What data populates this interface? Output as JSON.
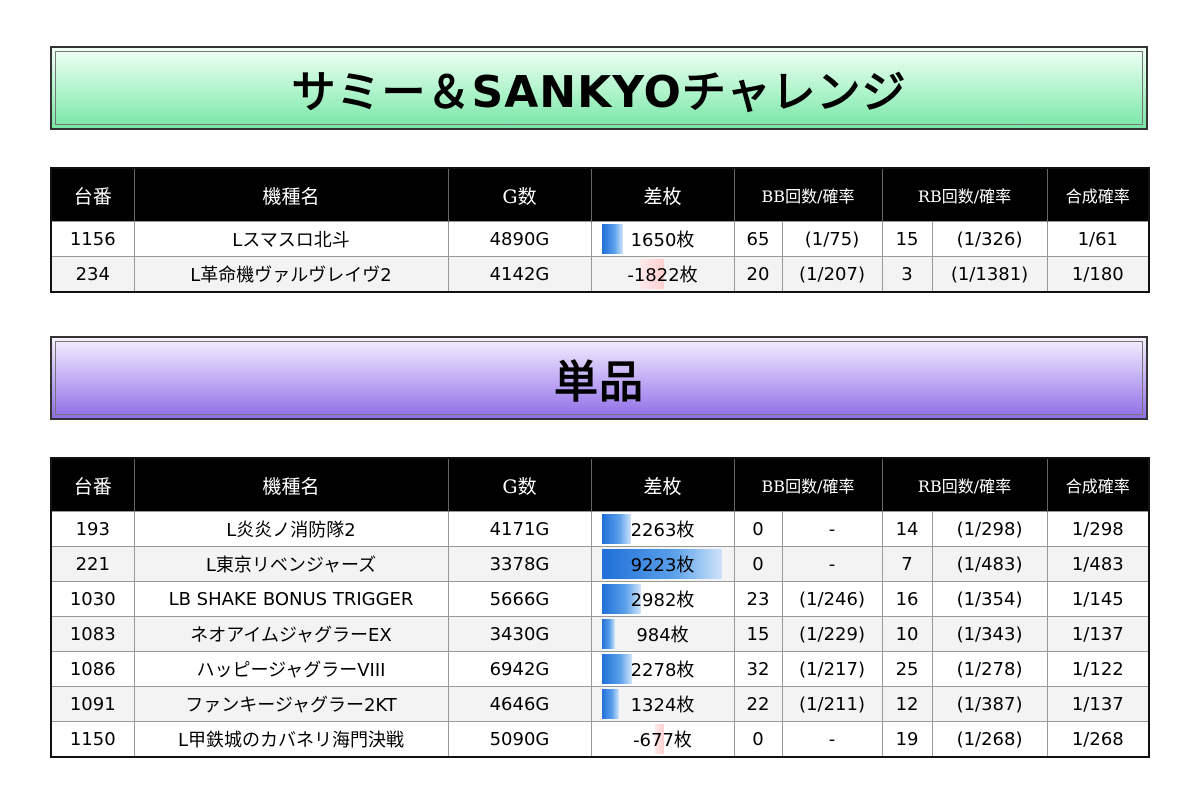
{
  "sections": [
    {
      "title": "サミー＆SANKYOチャレンジ",
      "rows": [
        {
          "number": "1156",
          "machine": "Lスマスロ北斗",
          "games": "4890G",
          "diff": "1650枚",
          "diff_value": 1650,
          "bb": "65",
          "bb_rate": "(1/75)",
          "rb": "15",
          "rb_rate": "(1/326)",
          "combined": "1/61"
        },
        {
          "number": "234",
          "machine": "L革命機ヴァルヴレイヴ2",
          "games": "4142G",
          "diff": "-1822枚",
          "diff_value": -1822,
          "bb": "20",
          "bb_rate": "(1/207)",
          "rb": "3",
          "rb_rate": "(1/1381)",
          "combined": "1/180"
        }
      ]
    },
    {
      "title": "単品",
      "rows": [
        {
          "number": "193",
          "machine": "L炎炎ノ消防隊2",
          "games": "4171G",
          "diff": "2263枚",
          "diff_value": 2263,
          "bb": "0",
          "bb_rate": "-",
          "rb": "14",
          "rb_rate": "(1/298)",
          "combined": "1/298"
        },
        {
          "number": "221",
          "machine": "L東京リベンジャーズ",
          "games": "3378G",
          "diff": "9223枚",
          "diff_value": 9223,
          "bb": "0",
          "bb_rate": "-",
          "rb": "7",
          "rb_rate": "(1/483)",
          "combined": "1/483"
        },
        {
          "number": "1030",
          "machine": "LB SHAKE BONUS TRIGGER",
          "games": "5666G",
          "diff": "2982枚",
          "diff_value": 2982,
          "bb": "23",
          "bb_rate": "(1/246)",
          "rb": "16",
          "rb_rate": "(1/354)",
          "combined": "1/145"
        },
        {
          "number": "1083",
          "machine": "ネオアイムジャグラーEX",
          "games": "3430G",
          "diff": "984枚",
          "diff_value": 984,
          "bb": "15",
          "bb_rate": "(1/229)",
          "rb": "10",
          "rb_rate": "(1/343)",
          "combined": "1/137"
        },
        {
          "number": "1086",
          "machine": "ハッピージャグラーVIII",
          "games": "6942G",
          "diff": "2278枚",
          "diff_value": 2278,
          "bb": "32",
          "bb_rate": "(1/217)",
          "rb": "25",
          "rb_rate": "(1/278)",
          "combined": "1/122"
        },
        {
          "number": "1091",
          "machine": "ファンキージャグラー2KT",
          "games": "4646G",
          "diff": "1324枚",
          "diff_value": 1324,
          "bb": "22",
          "bb_rate": "(1/211)",
          "rb": "12",
          "rb_rate": "(1/387)",
          "combined": "1/137"
        },
        {
          "number": "1150",
          "machine": "L甲鉄城のカバネリ海門決戦",
          "games": "5090G",
          "diff": "-677枚",
          "diff_value": -677,
          "bb": "0",
          "bb_rate": "-",
          "rb": "19",
          "rb_rate": "(1/268)",
          "combined": "1/268"
        }
      ]
    }
  ],
  "headers": {
    "number": "台番",
    "machine": "機種名",
    "games": "G数",
    "diff": "差枚",
    "bb": "BB回数/確率",
    "rb": "RB回数/確率",
    "combined": "合成確率"
  },
  "colors": {
    "positive_bar": "#1f6fd8",
    "negative_bar": "#ffd0d0",
    "header_bg": "#000000",
    "banner1_accent": "#78e6a6",
    "banner2_accent": "#8f6de6"
  }
}
